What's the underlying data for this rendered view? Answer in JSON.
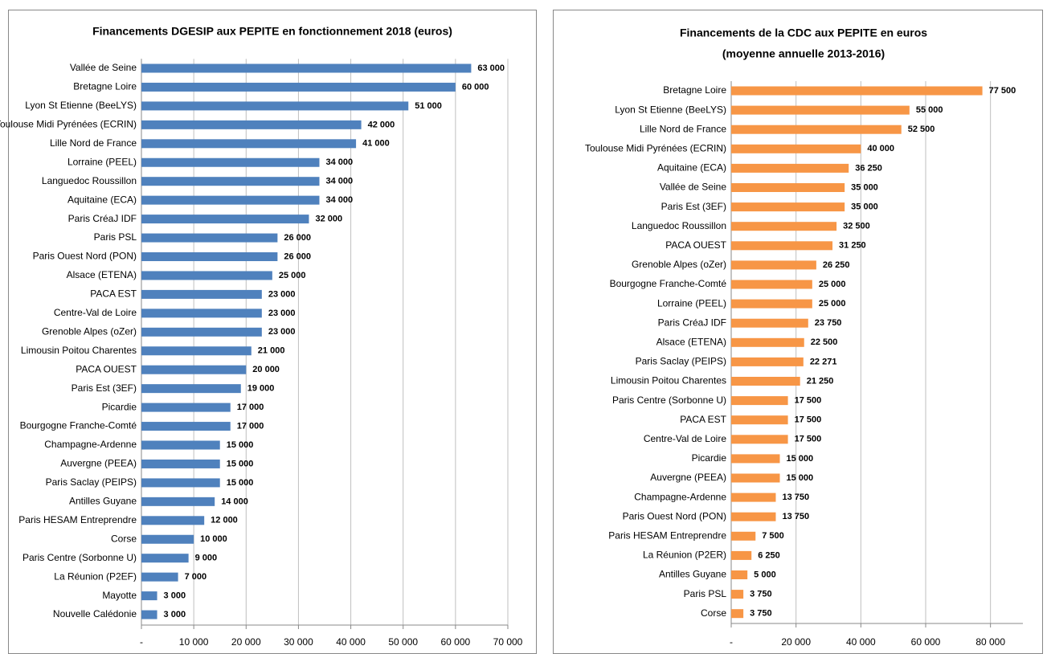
{
  "chart_data": [
    {
      "type": "hbar",
      "title": "Financements DGESIP aux PEPITE en fonctionnement 2018 (euros)",
      "color": "#4f81bd",
      "grid": true,
      "categories": [
        "Vallée de Seine",
        "Bretagne Loire",
        "Lyon St Etienne (BeeLYS)",
        "Toulouse Midi Pyrénées (ECRIN)",
        "Lille Nord de France",
        "Lorraine (PEEL)",
        "Languedoc Roussillon",
        "Aquitaine (ECA)",
        "Paris CréaJ IDF",
        "Paris PSL",
        "Paris Ouest Nord (PON)",
        "Alsace (ETENA)",
        "PACA EST",
        "Centre-Val de Loire",
        "Grenoble Alpes (oZer)",
        "Limousin Poitou Charentes",
        "PACA OUEST",
        "Paris Est (3EF)",
        "Picardie",
        "Bourgogne Franche-Comté",
        "Champagne-Ardenne",
        "Auvergne (PEEA)",
        "Paris Saclay (PEIPS)",
        "Antilles Guyane",
        "Paris HESAM Entreprendre",
        "Corse",
        "Paris Centre (Sorbonne U)",
        "La Réunion (P2EF)",
        "Mayotte",
        "Nouvelle Calédonie"
      ],
      "values": [
        63000,
        60000,
        51000,
        42000,
        41000,
        34000,
        34000,
        34000,
        32000,
        26000,
        26000,
        25000,
        23000,
        23000,
        23000,
        21000,
        20000,
        19000,
        17000,
        17000,
        15000,
        15000,
        15000,
        14000,
        12000,
        10000,
        9000,
        7000,
        3000,
        3000
      ],
      "value_labels": [
        "63 000",
        "60 000",
        "51 000",
        "42 000",
        "41 000",
        "34 000",
        "34 000",
        "34 000",
        "32 000",
        "26 000",
        "26 000",
        "25 000",
        "23 000",
        "23 000",
        "23 000",
        "21 000",
        "20 000",
        "19 000",
        "17 000",
        "17 000",
        "15 000",
        "15 000",
        "15 000",
        "14 000",
        "12 000",
        "10 000",
        "9 000",
        "7 000",
        "3 000",
        "3 000"
      ],
      "xlim": [
        0,
        70000
      ],
      "xticks": [
        {
          "value": 0,
          "label": "-"
        },
        {
          "value": 10000,
          "label": "10 000"
        },
        {
          "value": 20000,
          "label": "20 000"
        },
        {
          "value": 30000,
          "label": "30 000"
        },
        {
          "value": 40000,
          "label": "40 000"
        },
        {
          "value": 50000,
          "label": "50 000"
        },
        {
          "value": 60000,
          "label": "60 000"
        },
        {
          "value": 70000,
          "label": "70 000"
        }
      ]
    },
    {
      "type": "hbar",
      "title": "Financements de la CDC aux PEPITE en euros",
      "subtitle": "(moyenne annuelle 2013-2016)",
      "color": "#f79646",
      "grid": true,
      "categories": [
        "Bretagne Loire",
        "Lyon St Etienne (BeeLYS)",
        "Lille Nord de France",
        "Toulouse Midi Pyrénées (ECRIN)",
        "Aquitaine (ECA)",
        "Vallée de Seine",
        "Paris Est (3EF)",
        "Languedoc Roussillon",
        "PACA OUEST",
        "Grenoble Alpes (oZer)",
        "Bourgogne Franche-Comté",
        "Lorraine (PEEL)",
        "Paris CréaJ IDF",
        "Alsace (ETENA)",
        "Paris Saclay (PEIPS)",
        "Limousin Poitou Charentes",
        "Paris Centre (Sorbonne U)",
        "PACA EST",
        "Centre-Val de Loire",
        "Picardie",
        "Auvergne (PEEA)",
        "Champagne-Ardenne",
        "Paris Ouest Nord (PON)",
        "Paris HESAM Entreprendre",
        "La Réunion (P2ER)",
        "Antilles Guyane",
        "Paris PSL",
        "Corse"
      ],
      "values": [
        77500,
        55000,
        52500,
        40000,
        36250,
        35000,
        35000,
        32500,
        31250,
        26250,
        25000,
        25000,
        23750,
        22500,
        22271,
        21250,
        17500,
        17500,
        17500,
        15000,
        15000,
        13750,
        13750,
        7500,
        6250,
        5000,
        3750,
        3750
      ],
      "value_labels": [
        "77 500",
        "55 000",
        "52 500",
        "40 000",
        "36 250",
        "35 000",
        "35 000",
        "32 500",
        "31 250",
        "26 250",
        "25 000",
        "25 000",
        "23 750",
        "22 500",
        "22 271",
        "21 250",
        "17 500",
        "17 500",
        "17 500",
        "15 000",
        "15 000",
        "13 750",
        "13 750",
        "7 500",
        "6 250",
        "5 000",
        "3 750",
        "3 750"
      ],
      "xlim": [
        0,
        90000
      ],
      "xticks": [
        {
          "value": 0,
          "label": "-"
        },
        {
          "value": 20000,
          "label": "20 000"
        },
        {
          "value": 40000,
          "label": "40 000"
        },
        {
          "value": 60000,
          "label": "60 000"
        },
        {
          "value": 80000,
          "label": "80 000"
        }
      ]
    }
  ]
}
